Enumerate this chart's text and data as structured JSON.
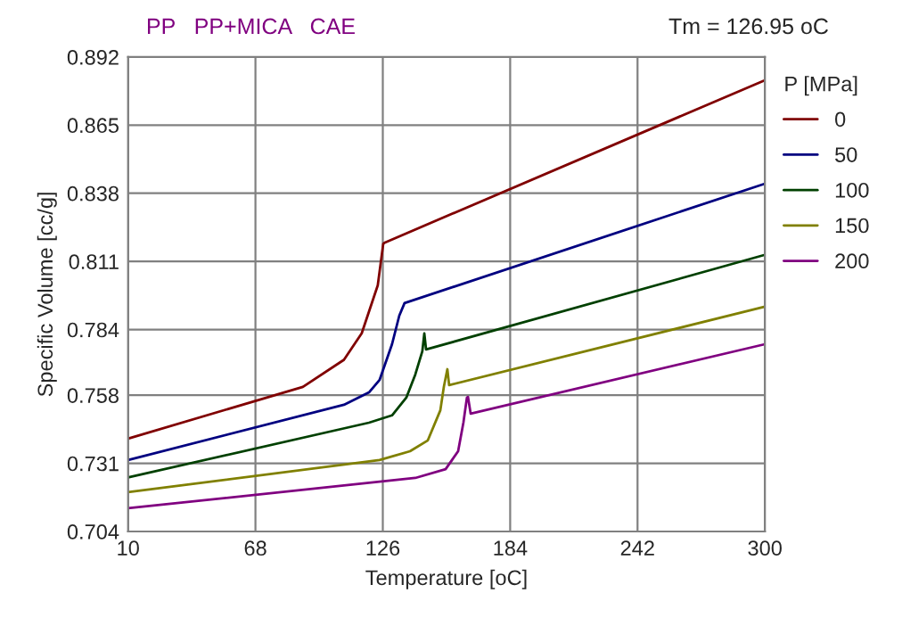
{
  "chart_data": {
    "type": "line",
    "title": "PP   PP+MICA   CAE",
    "annotations": [
      "Tm = 126.95 oC"
    ],
    "xlabel": "Temperature [oC]",
    "ylabel": "Specific Volume [cc/g]",
    "legend_title": "P [MPa]",
    "legend": "top right",
    "grid": true,
    "marker": "none",
    "line_style": "solid",
    "xlim": [
      10,
      300
    ],
    "xticks": [
      10,
      68,
      126,
      184,
      242,
      300
    ],
    "ylim": [
      0.704,
      0.892
    ],
    "yticks": [
      0.704,
      0.731,
      0.758,
      0.784,
      0.811,
      0.838,
      0.865,
      0.892
    ],
    "series": [
      {
        "name": "0",
        "color": "#800000",
        "x": [
          10,
          89.6,
          108.3,
          116.4,
          123.7,
          126.2,
          127,
          300
        ],
        "values": [
          0.7408,
          0.7613,
          0.772,
          0.7825,
          0.8015,
          0.818,
          0.8185,
          0.8828
        ]
      },
      {
        "name": "50",
        "color": "#000080",
        "x": [
          10,
          108.3,
          119.7,
          124.5,
          130.2,
          133.5,
          135.9,
          300
        ],
        "values": [
          0.7323,
          0.7542,
          0.7591,
          0.764,
          0.7782,
          0.7895,
          0.7945,
          0.8418
        ]
      },
      {
        "name": "100",
        "color": "#004000",
        "x": [
          10,
          119.7,
          130.2,
          136.7,
          140.8,
          144,
          144.9,
          145.7,
          300
        ],
        "values": [
          0.7254,
          0.7471,
          0.75,
          0.757,
          0.7662,
          0.7754,
          0.7825,
          0.7761,
          0.8136
        ]
      },
      {
        "name": "150",
        "color": "#808000",
        "x": [
          10,
          124.5,
          138.4,
          146.5,
          152.2,
          153.8,
          155.4,
          156.2,
          300
        ],
        "values": [
          0.7196,
          0.7323,
          0.7358,
          0.7401,
          0.752,
          0.7613,
          0.7683,
          0.762,
          0.7931
        ]
      },
      {
        "name": "200",
        "color": "#800080",
        "x": [
          10,
          140.8,
          154.6,
          160.3,
          162.7,
          164.3,
          164.8,
          166,
          300
        ],
        "values": [
          0.7132,
          0.7252,
          0.7287,
          0.7358,
          0.7471,
          0.757,
          0.7573,
          0.7507,
          0.7782
        ]
      }
    ]
  }
}
